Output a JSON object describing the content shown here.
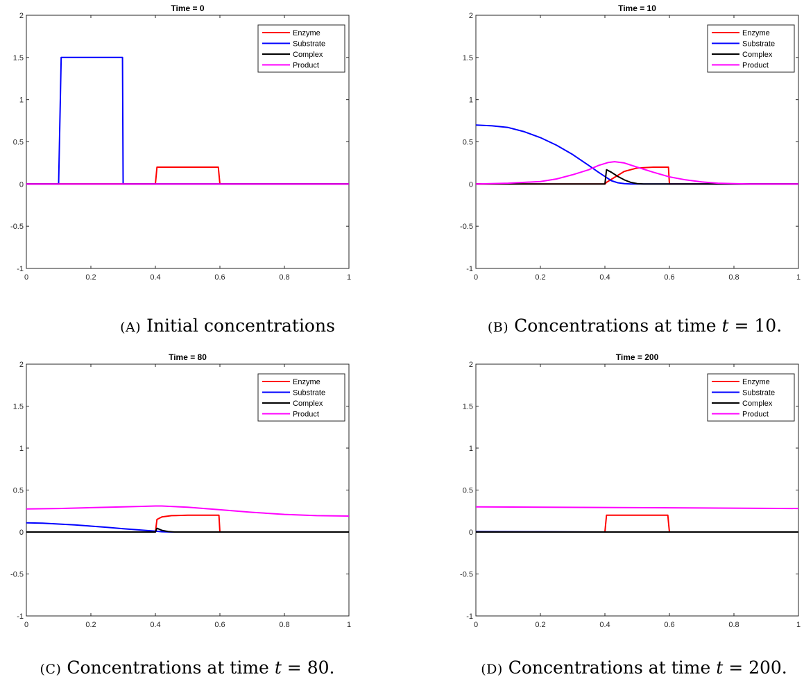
{
  "legend": {
    "items": [
      {
        "name": "Enzyme",
        "color": "#ff0000"
      },
      {
        "name": "Substrate",
        "color": "#0000ff"
      },
      {
        "name": "Complex",
        "color": "#000000"
      },
      {
        "name": "Product",
        "color": "#ff00ff"
      }
    ],
    "placement": "top-right"
  },
  "captions": [
    {
      "tag": "(A)",
      "text": "Initial concentrations",
      "math": ""
    },
    {
      "tag": "(B)",
      "text": "Concentrations at time ",
      "math": "t",
      "rest": " = 10."
    },
    {
      "tag": "(C)",
      "text": "Concentrations at time ",
      "math": "t",
      "rest": " = 80."
    },
    {
      "tag": "(D)",
      "text": "Concentrations at time ",
      "math": "t",
      "rest": " = 200."
    }
  ],
  "chart_data": [
    {
      "type": "line",
      "title": "Time = 0",
      "xlim": [
        0,
        1
      ],
      "ylim": [
        -1,
        2
      ],
      "xticks": [
        0,
        0.2,
        0.4,
        0.6,
        0.8,
        1
      ],
      "xtick_labels": [
        "0",
        "0.2",
        "0.4",
        "0.6",
        "0.8",
        "1"
      ],
      "yticks": [
        -1,
        -0.5,
        0,
        0.5,
        1,
        1.5,
        2
      ],
      "ytick_labels": [
        "-1",
        "-0.5",
        "0",
        "0.5",
        "1",
        "1.5",
        "2"
      ],
      "series": [
        {
          "name": "Enzyme",
          "color": "#ff0000",
          "x": [
            0,
            0.4,
            0.405,
            0.595,
            0.6,
            1
          ],
          "y": [
            0,
            0,
            0.2,
            0.2,
            0,
            0
          ]
        },
        {
          "name": "Substrate",
          "color": "#0000ff",
          "x": [
            0,
            0.1,
            0.108,
            0.298,
            0.3,
            1
          ],
          "y": [
            0,
            0,
            1.5,
            1.5,
            0,
            0
          ]
        },
        {
          "name": "Complex",
          "color": "#000000",
          "x": [
            0,
            1
          ],
          "y": [
            0,
            0
          ]
        },
        {
          "name": "Product",
          "color": "#ff00ff",
          "x": [
            0,
            1
          ],
          "y": [
            0,
            0
          ]
        }
      ]
    },
    {
      "type": "line",
      "title": "Time = 10",
      "xlim": [
        0,
        1
      ],
      "ylim": [
        -1,
        2
      ],
      "xticks": [
        0,
        0.2,
        0.4,
        0.6,
        0.8,
        1
      ],
      "xtick_labels": [
        "0",
        "0.2",
        "0.4",
        "0.6",
        "0.8",
        "1"
      ],
      "yticks": [
        -1,
        -0.5,
        0,
        0.5,
        1,
        1.5,
        2
      ],
      "ytick_labels": [
        "-1",
        "-0.5",
        "0",
        "0.5",
        "1",
        "1.5",
        "2"
      ],
      "series": [
        {
          "name": "Enzyme",
          "color": "#ff0000",
          "x": [
            0,
            0.4,
            0.405,
            0.43,
            0.46,
            0.5,
            0.55,
            0.597,
            0.6,
            1
          ],
          "y": [
            0,
            0,
            0.02,
            0.08,
            0.15,
            0.19,
            0.2,
            0.2,
            0,
            0
          ]
        },
        {
          "name": "Substrate",
          "color": "#0000ff",
          "x": [
            0,
            0.05,
            0.1,
            0.15,
            0.2,
            0.25,
            0.3,
            0.35,
            0.38,
            0.4,
            0.42,
            0.44,
            0.46,
            0.48,
            0.5,
            1
          ],
          "y": [
            0.7,
            0.69,
            0.67,
            0.62,
            0.55,
            0.46,
            0.35,
            0.22,
            0.14,
            0.09,
            0.04,
            0.015,
            0.005,
            0.001,
            0,
            0
          ]
        },
        {
          "name": "Complex",
          "color": "#000000",
          "x": [
            0,
            0.4,
            0.405,
            0.42,
            0.44,
            0.46,
            0.48,
            0.5,
            0.52,
            1
          ],
          "y": [
            0,
            0,
            0.17,
            0.14,
            0.09,
            0.05,
            0.02,
            0.005,
            0,
            0
          ]
        },
        {
          "name": "Product",
          "color": "#ff00ff",
          "x": [
            0,
            0.1,
            0.2,
            0.25,
            0.3,
            0.35,
            0.38,
            0.41,
            0.43,
            0.46,
            0.5,
            0.55,
            0.6,
            0.65,
            0.7,
            0.75,
            0.8,
            0.85,
            1
          ],
          "y": [
            0,
            0.01,
            0.03,
            0.06,
            0.11,
            0.17,
            0.22,
            0.255,
            0.265,
            0.25,
            0.2,
            0.14,
            0.085,
            0.05,
            0.025,
            0.01,
            0.004,
            0.001,
            0
          ]
        }
      ]
    },
    {
      "type": "line",
      "title": "Time = 80",
      "xlim": [
        0,
        1
      ],
      "ylim": [
        -1,
        2
      ],
      "xticks": [
        0,
        0.2,
        0.4,
        0.6,
        0.8,
        1
      ],
      "xtick_labels": [
        "0",
        "0.2",
        "0.4",
        "0.6",
        "0.8",
        "1"
      ],
      "yticks": [
        -1,
        -0.5,
        0,
        0.5,
        1,
        1.5,
        2
      ],
      "ytick_labels": [
        "-1",
        "-0.5",
        "0",
        "0.5",
        "1",
        "1.5",
        "2"
      ],
      "series": [
        {
          "name": "Enzyme",
          "color": "#ff0000",
          "x": [
            0,
            0.4,
            0.405,
            0.42,
            0.45,
            0.5,
            0.597,
            0.6,
            1
          ],
          "y": [
            0,
            0,
            0.15,
            0.18,
            0.195,
            0.2,
            0.2,
            0,
            0
          ]
        },
        {
          "name": "Substrate",
          "color": "#0000ff",
          "x": [
            0,
            0.05,
            0.1,
            0.15,
            0.2,
            0.25,
            0.3,
            0.35,
            0.4,
            0.42,
            0.45,
            1
          ],
          "y": [
            0.11,
            0.105,
            0.095,
            0.085,
            0.07,
            0.055,
            0.04,
            0.025,
            0.01,
            0.003,
            0,
            0
          ]
        },
        {
          "name": "Complex",
          "color": "#000000",
          "x": [
            0,
            0.4,
            0.405,
            0.42,
            0.44,
            0.46,
            1
          ],
          "y": [
            0,
            0,
            0.045,
            0.02,
            0.005,
            0,
            0
          ]
        },
        {
          "name": "Product",
          "color": "#ff00ff",
          "x": [
            0,
            0.1,
            0.2,
            0.3,
            0.4,
            0.42,
            0.5,
            0.6,
            0.7,
            0.8,
            0.9,
            1
          ],
          "y": [
            0.275,
            0.28,
            0.29,
            0.3,
            0.31,
            0.31,
            0.295,
            0.265,
            0.235,
            0.21,
            0.195,
            0.19
          ]
        }
      ]
    },
    {
      "type": "line",
      "title": "Time = 200",
      "xlim": [
        0,
        1
      ],
      "ylim": [
        -1,
        2
      ],
      "xticks": [
        0,
        0.2,
        0.4,
        0.6,
        0.8,
        1
      ],
      "xtick_labels": [
        "0",
        "0.2",
        "0.4",
        "0.6",
        "0.8",
        "1"
      ],
      "yticks": [
        -1,
        -0.5,
        0,
        0.5,
        1,
        1.5,
        2
      ],
      "ytick_labels": [
        "-1",
        "-0.5",
        "0",
        "0.5",
        "1",
        "1.5",
        "2"
      ],
      "series": [
        {
          "name": "Enzyme",
          "color": "#ff0000",
          "x": [
            0,
            0.4,
            0.405,
            0.595,
            0.6,
            1
          ],
          "y": [
            0,
            0,
            0.2,
            0.2,
            0,
            0
          ]
        },
        {
          "name": "Substrate",
          "color": "#0000ff",
          "x": [
            0,
            0.2,
            0.4,
            1
          ],
          "y": [
            0.005,
            0.003,
            0,
            0
          ]
        },
        {
          "name": "Complex",
          "color": "#000000",
          "x": [
            0,
            1
          ],
          "y": [
            0,
            0
          ]
        },
        {
          "name": "Product",
          "color": "#ff00ff",
          "x": [
            0,
            0.5,
            1
          ],
          "y": [
            0.3,
            0.29,
            0.28
          ]
        }
      ]
    }
  ]
}
